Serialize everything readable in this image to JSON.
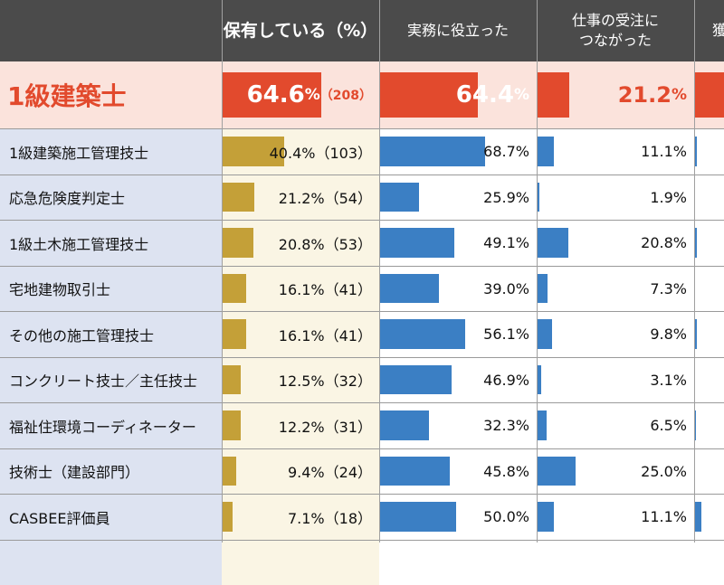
{
  "chart_data": {
    "type": "table",
    "columns": [
      "",
      "保有している（%）",
      "実務に役立った",
      "仕事の受注につながった",
      "獲"
    ],
    "colors": {
      "owned_bar": "#c4a038",
      "useful_bar": "#3b7fc4",
      "orders_bar": "#3b7fc4",
      "highlight_bar": "#e24a2d",
      "highlight_text": "#e24a2d"
    },
    "highlight": {
      "label": "1級建築士",
      "owned_pct": 64.6,
      "owned_text": "64.6",
      "owned_pct_sign": "%",
      "owned_count": "（208）",
      "useful_pct": 64.4,
      "useful_text": "64.4",
      "useful_pct_sign": "%",
      "orders_pct": 21.2,
      "orders_text": "21.2",
      "orders_pct_sign": "%"
    },
    "rows": [
      {
        "label": "1級建築施工管理技士",
        "owned_pct": 40.4,
        "owned_text": "40.4%（103）",
        "useful_pct": 68.7,
        "useful_text": "68.7%",
        "orders_pct": 11.1,
        "orders_text": "11.1%",
        "fourth_pct": 1.5
      },
      {
        "label": "応急危険度判定士",
        "owned_pct": 21.2,
        "owned_text": "21.2%（54）",
        "useful_pct": 25.9,
        "useful_text": "25.9%",
        "orders_pct": 1.9,
        "orders_text": "1.9%",
        "fourth_pct": 0
      },
      {
        "label": "1級土木施工管理技士",
        "owned_pct": 20.8,
        "owned_text": "20.8%（53）",
        "useful_pct": 49.1,
        "useful_text": "49.1%",
        "orders_pct": 20.8,
        "orders_text": "20.8%",
        "fourth_pct": 1.8
      },
      {
        "label": "宅地建物取引士",
        "owned_pct": 16.1,
        "owned_text": "16.1%（41）",
        "useful_pct": 39.0,
        "useful_text": "39.0%",
        "orders_pct": 7.3,
        "orders_text": "7.3%",
        "fourth_pct": 0
      },
      {
        "label": "その他の施工管理技士",
        "owned_pct": 16.1,
        "owned_text": "16.1%（41）",
        "useful_pct": 56.1,
        "useful_text": "56.1%",
        "orders_pct": 9.8,
        "orders_text": "9.8%",
        "fourth_pct": 1.8
      },
      {
        "label": "コンクリート技士／主任技士",
        "owned_pct": 12.5,
        "owned_text": "12.5%（32）",
        "useful_pct": 46.9,
        "useful_text": "46.9%",
        "orders_pct": 3.1,
        "orders_text": "3.1%",
        "fourth_pct": 0
      },
      {
        "label": "福祉住環境コーディネーター",
        "owned_pct": 12.2,
        "owned_text": "12.2%（31）",
        "useful_pct": 32.3,
        "useful_text": "32.3%",
        "orders_pct": 6.5,
        "orders_text": "6.5%",
        "fourth_pct": 1.4
      },
      {
        "label": "技術士（建設部門）",
        "owned_pct": 9.4,
        "owned_text": "9.4%（24）",
        "useful_pct": 45.8,
        "useful_text": "45.8%",
        "orders_pct": 25.0,
        "orders_text": "25.0%",
        "fourth_pct": 0
      },
      {
        "label": "CASBEE評価員",
        "owned_pct": 7.1,
        "owned_text": "7.1%（18）",
        "useful_pct": 50.0,
        "useful_text": "50.0%",
        "orders_pct": 11.1,
        "orders_text": "11.1%",
        "fourth_pct": 4.5
      },
      {
        "label": "",
        "owned_pct": 0,
        "owned_text": "",
        "useful_pct": 0,
        "useful_text": "",
        "orders_pct": 0,
        "orders_text": "",
        "fourth_pct": 0
      }
    ]
  }
}
